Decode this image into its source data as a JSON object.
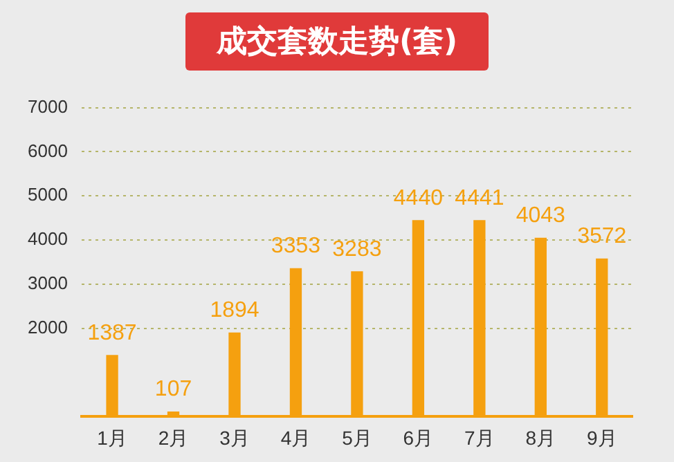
{
  "chart_data": {
    "type": "bar",
    "title": "成交套数走势(套)",
    "categories": [
      "1月",
      "2月",
      "3月",
      "4月",
      "5月",
      "6月",
      "7月",
      "8月",
      "9月"
    ],
    "values": [
      1387,
      107,
      1894,
      3353,
      3283,
      4440,
      4441,
      4043,
      3572
    ],
    "color": "#f5a00f",
    "ylim": [
      0,
      7000
    ],
    "yticks": [
      2000,
      3000,
      4000,
      5000,
      6000,
      7000
    ],
    "grid": "y",
    "data_labels": true,
    "legend": false
  }
}
